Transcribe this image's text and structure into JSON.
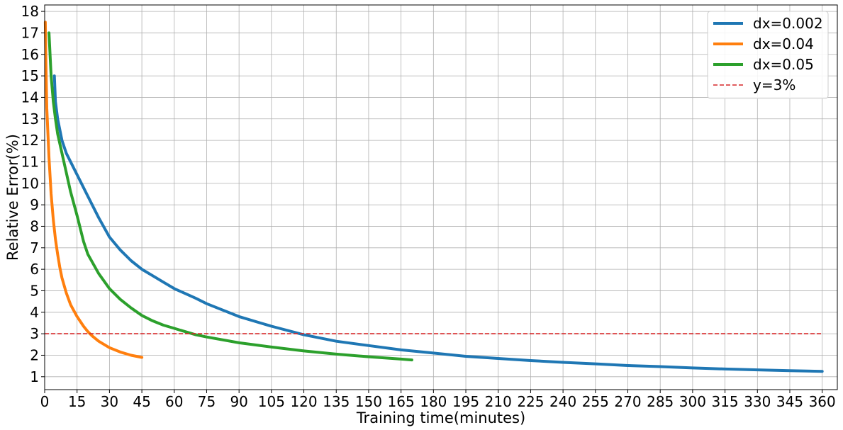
{
  "chart_data": {
    "type": "line",
    "title": "",
    "xlabel": "Training time(minutes)",
    "ylabel": "Relative Error(%)",
    "xlim": [
      0,
      367
    ],
    "ylim": [
      0.4,
      18.3
    ],
    "xticks": [
      0,
      15,
      30,
      45,
      60,
      75,
      90,
      105,
      120,
      135,
      150,
      165,
      180,
      195,
      210,
      225,
      240,
      255,
      270,
      285,
      300,
      315,
      330,
      345,
      360
    ],
    "yticks": [
      1,
      2,
      3,
      4,
      5,
      6,
      7,
      8,
      9,
      10,
      11,
      12,
      13,
      14,
      15,
      16,
      17,
      18
    ],
    "grid": true,
    "legend": "top-right",
    "series": [
      {
        "name": "dx=0.002",
        "color": "#1f77b4",
        "style": "solid",
        "points": [
          [
            4.5,
            15.0
          ],
          [
            5,
            13.8
          ],
          [
            6,
            13.0
          ],
          [
            8,
            12.0
          ],
          [
            10,
            11.4
          ],
          [
            15,
            10.4
          ],
          [
            20,
            9.4
          ],
          [
            25,
            8.4
          ],
          [
            30,
            7.5
          ],
          [
            35,
            6.9
          ],
          [
            40,
            6.4
          ],
          [
            45,
            6.0
          ],
          [
            50,
            5.7
          ],
          [
            55,
            5.4
          ],
          [
            60,
            5.1
          ],
          [
            70,
            4.65
          ],
          [
            75,
            4.4
          ],
          [
            90,
            3.8
          ],
          [
            100,
            3.5
          ],
          [
            105,
            3.35
          ],
          [
            120,
            2.95
          ],
          [
            135,
            2.65
          ],
          [
            150,
            2.45
          ],
          [
            165,
            2.25
          ],
          [
            180,
            2.1
          ],
          [
            195,
            1.95
          ],
          [
            210,
            1.85
          ],
          [
            225,
            1.75
          ],
          [
            240,
            1.67
          ],
          [
            255,
            1.6
          ],
          [
            270,
            1.52
          ],
          [
            285,
            1.47
          ],
          [
            300,
            1.41
          ],
          [
            315,
            1.36
          ],
          [
            330,
            1.32
          ],
          [
            345,
            1.28
          ],
          [
            360,
            1.25
          ]
        ]
      },
      {
        "name": "dx=0.04",
        "color": "#ff7f0e",
        "style": "solid",
        "points": [
          [
            0.3,
            17.5
          ],
          [
            0.6,
            15.5
          ],
          [
            1,
            13.5
          ],
          [
            2,
            11.2
          ],
          [
            3,
            9.5
          ],
          [
            4,
            8.3
          ],
          [
            5,
            7.4
          ],
          [
            6,
            6.7
          ],
          [
            7,
            6.1
          ],
          [
            8,
            5.6
          ],
          [
            10,
            4.9
          ],
          [
            12,
            4.35
          ],
          [
            15,
            3.8
          ],
          [
            18,
            3.35
          ],
          [
            20,
            3.1
          ],
          [
            22,
            2.9
          ],
          [
            25,
            2.65
          ],
          [
            30,
            2.35
          ],
          [
            35,
            2.15
          ],
          [
            40,
            2.0
          ],
          [
            45,
            1.9
          ]
        ]
      },
      {
        "name": "dx=0.05",
        "color": "#2ca02c",
        "style": "solid",
        "points": [
          [
            2,
            17.0
          ],
          [
            3,
            15.0
          ],
          [
            4,
            13.8
          ],
          [
            5,
            13.0
          ],
          [
            6,
            12.3
          ],
          [
            8,
            11.4
          ],
          [
            10,
            10.5
          ],
          [
            12,
            9.6
          ],
          [
            15,
            8.5
          ],
          [
            18,
            7.3
          ],
          [
            20,
            6.7
          ],
          [
            25,
            5.8
          ],
          [
            30,
            5.1
          ],
          [
            35,
            4.6
          ],
          [
            40,
            4.2
          ],
          [
            45,
            3.85
          ],
          [
            50,
            3.6
          ],
          [
            55,
            3.4
          ],
          [
            60,
            3.25
          ],
          [
            65,
            3.1
          ],
          [
            70,
            2.95
          ],
          [
            75,
            2.85
          ],
          [
            90,
            2.58
          ],
          [
            105,
            2.38
          ],
          [
            120,
            2.2
          ],
          [
            135,
            2.05
          ],
          [
            150,
            1.93
          ],
          [
            165,
            1.82
          ],
          [
            170,
            1.78
          ]
        ]
      },
      {
        "name": "y=3%",
        "color": "#d62728",
        "style": "dashed",
        "points": [
          [
            0,
            3
          ],
          [
            360,
            3
          ]
        ]
      }
    ]
  }
}
